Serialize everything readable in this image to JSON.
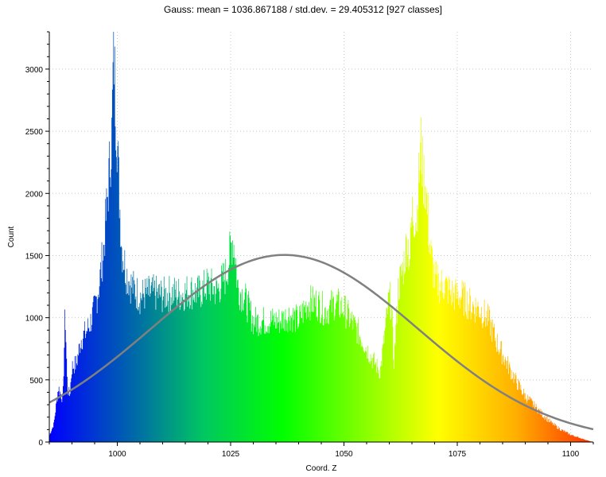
{
  "chart_data": {
    "type": "area",
    "title": "Gauss: mean = 1036.867188 / std.dev. = 29.405312 [927 classes]",
    "xlabel": "Coord. Z",
    "ylabel": "Count",
    "xlim": [
      985,
      1105
    ],
    "ylim": [
      0,
      3300
    ],
    "x_ticks": [
      1000,
      1025,
      1050,
      1075,
      1100
    ],
    "y_ticks": [
      0,
      500,
      1000,
      1500,
      2000,
      2500,
      3000
    ],
    "x_tick_labels": [
      "1000",
      "1025",
      "1050",
      "1075",
      "1100"
    ],
    "y_tick_labels": [
      "0",
      "500",
      "1000",
      "1500",
      "2000",
      "2500",
      "3000"
    ],
    "grid": true,
    "color_scale": [
      "#0000ff",
      "#0060b0",
      "#00c860",
      "#00ff00",
      "#80ff00",
      "#ffff00",
      "#ffb000",
      "#ff3000"
    ],
    "histogram": {
      "x_start": 985,
      "x_end": 1105,
      "classes": 927,
      "envelope_x": [
        985,
        986,
        987,
        988,
        988.5,
        989,
        989.5,
        990,
        991,
        992,
        993,
        994,
        995,
        996,
        997,
        998,
        998.8,
        999.2,
        999.6,
        1000,
        1000.5,
        1001,
        1002,
        1003,
        1004,
        1005,
        1006,
        1008,
        1010,
        1012,
        1014,
        1016,
        1018,
        1020,
        1022,
        1024,
        1025.5,
        1026,
        1026.5,
        1027,
        1028,
        1030,
        1032,
        1034,
        1036,
        1038,
        1040,
        1042,
        1044,
        1046,
        1048,
        1050,
        1052,
        1054,
        1056,
        1058,
        1060,
        1060.5,
        1061,
        1062,
        1063,
        1064,
        1064.5,
        1065,
        1066,
        1067,
        1067.5,
        1068,
        1069,
        1070,
        1071,
        1072,
        1074,
        1076,
        1078,
        1080,
        1082,
        1084,
        1086,
        1088,
        1090,
        1092,
        1094,
        1096,
        1098,
        1100,
        1102,
        1104,
        1105
      ],
      "envelope_y": [
        50,
        150,
        450,
        350,
        1080,
        450,
        380,
        620,
        650,
        850,
        900,
        980,
        1100,
        1300,
        1600,
        2100,
        2550,
        3300,
        2800,
        2500,
        2000,
        1600,
        1400,
        1300,
        1250,
        1200,
        1220,
        1230,
        1210,
        1230,
        1220,
        1250,
        1230,
        1300,
        1250,
        1380,
        1690,
        1560,
        1300,
        1250,
        1200,
        1000,
        1000,
        1000,
        1000,
        1050,
        1000,
        1150,
        1150,
        1080,
        1150,
        1100,
        980,
        850,
        700,
        580,
        1200,
        1120,
        650,
        1280,
        1420,
        1680,
        1500,
        1900,
        1850,
        2450,
        2200,
        2150,
        1600,
        1350,
        1300,
        1300,
        1220,
        1200,
        1130,
        1100,
        1000,
        800,
        650,
        500,
        380,
        300,
        220,
        150,
        100,
        60,
        35,
        10,
        0
      ]
    },
    "series": [
      {
        "type": "line",
        "color": "#808080",
        "mean": 1036.867188,
        "std_dev": 29.405312,
        "peak": 1505
      }
    ]
  }
}
